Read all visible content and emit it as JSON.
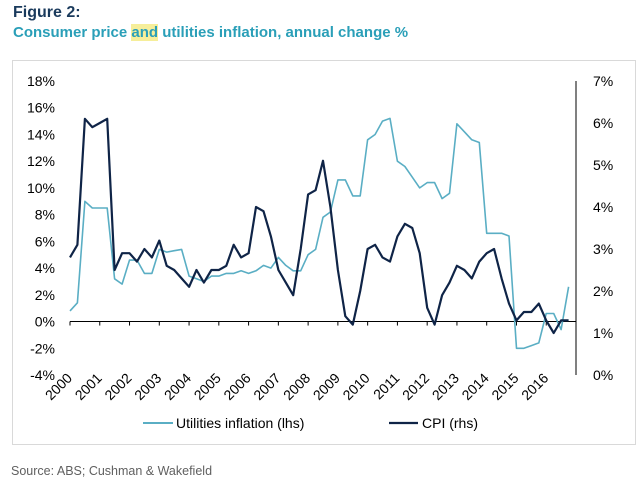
{
  "figure_label": "Figure 2:",
  "title_parts": [
    "Consumer price ",
    "and",
    " utilities inflation, annual change %"
  ],
  "source": "Source: ABS; Cushman & Wakefield",
  "colors": {
    "utilities": "#5aaec4",
    "cpi": "#0f2447",
    "title": "#2a9fb8",
    "highlight": "#f6ee9a"
  },
  "chart_data": {
    "type": "line",
    "title": "Consumer price and utilities inflation, annual change %",
    "x_tick_labels": [
      "2000",
      "2001",
      "2002",
      "2003",
      "2004",
      "2005",
      "2006",
      "2007",
      "2008",
      "2009",
      "2010",
      "2011",
      "2012",
      "2013",
      "2014",
      "2015",
      "2016"
    ],
    "y_left": {
      "ticks": [
        "18%",
        "16%",
        "14%",
        "12%",
        "10%",
        "8%",
        "6%",
        "4%",
        "2%",
        "0%",
        "-2%",
        "-4%"
      ],
      "range": [
        -4,
        18
      ]
    },
    "y_right": {
      "ticks": [
        "7%",
        "6%",
        "5%",
        "4%",
        "3%",
        "2%",
        "1%",
        "0%"
      ],
      "range": [
        0,
        7
      ]
    },
    "grid": false,
    "legend_position": "bottom",
    "series": [
      {
        "name": "Utilities inflation (lhs)",
        "axis": "left",
        "x": [
          2000.0,
          2000.25,
          2000.5,
          2000.75,
          2001.0,
          2001.25,
          2001.5,
          2001.75,
          2002.0,
          2002.25,
          2002.5,
          2002.75,
          2003.0,
          2003.25,
          2003.5,
          2003.75,
          2004.0,
          2004.25,
          2004.5,
          2004.75,
          2005.0,
          2005.25,
          2005.5,
          2005.75,
          2006.0,
          2006.25,
          2006.5,
          2006.75,
          2007.0,
          2007.25,
          2007.5,
          2007.75,
          2008.0,
          2008.25,
          2008.5,
          2008.75,
          2009.0,
          2009.25,
          2009.5,
          2009.75,
          2010.0,
          2010.25,
          2010.5,
          2010.75,
          2011.0,
          2011.25,
          2011.5,
          2011.75,
          2012.0,
          2012.25,
          2012.5,
          2012.75,
          2013.0,
          2013.25,
          2013.5,
          2013.75,
          2014.0,
          2014.25,
          2014.5,
          2014.75,
          2015.0,
          2015.25,
          2015.5,
          2015.75,
          2016.0,
          2016.25,
          2016.5,
          2016.75
        ],
        "values": [
          0.8,
          1.4,
          9.0,
          8.5,
          8.5,
          8.5,
          3.2,
          2.8,
          4.6,
          4.6,
          3.6,
          3.6,
          5.4,
          5.2,
          5.3,
          5.4,
          3.4,
          3.2,
          3.0,
          3.4,
          3.4,
          3.6,
          3.6,
          3.8,
          3.6,
          3.8,
          4.2,
          4.0,
          4.8,
          4.2,
          3.8,
          3.8,
          5.0,
          5.4,
          7.8,
          8.2,
          10.6,
          10.6,
          9.4,
          9.4,
          13.6,
          14.0,
          15.0,
          15.2,
          12.0,
          11.6,
          10.8,
          10.0,
          10.4,
          10.4,
          9.2,
          9.6,
          14.8,
          14.2,
          13.6,
          13.4,
          6.6,
          6.6,
          6.6,
          6.4,
          -2.0,
          -2.0,
          -1.8,
          -1.6,
          0.6,
          0.6,
          -0.6,
          2.6
        ]
      },
      {
        "name": "CPI (rhs)",
        "axis": "right",
        "x": [
          2000.0,
          2000.25,
          2000.5,
          2000.75,
          2001.0,
          2001.25,
          2001.5,
          2001.75,
          2002.0,
          2002.25,
          2002.5,
          2002.75,
          2003.0,
          2003.25,
          2003.5,
          2003.75,
          2004.0,
          2004.25,
          2004.5,
          2004.75,
          2005.0,
          2005.25,
          2005.5,
          2005.75,
          2006.0,
          2006.25,
          2006.5,
          2006.75,
          2007.0,
          2007.25,
          2007.5,
          2007.75,
          2008.0,
          2008.25,
          2008.5,
          2008.75,
          2009.0,
          2009.25,
          2009.5,
          2009.75,
          2010.0,
          2010.25,
          2010.5,
          2010.75,
          2011.0,
          2011.25,
          2011.5,
          2011.75,
          2012.0,
          2012.25,
          2012.5,
          2012.75,
          2013.0,
          2013.25,
          2013.5,
          2013.75,
          2014.0,
          2014.25,
          2014.5,
          2014.75,
          2015.0,
          2015.25,
          2015.5,
          2015.75,
          2016.0,
          2016.25,
          2016.5,
          2016.75
        ],
        "values": [
          2.8,
          3.1,
          6.1,
          5.9,
          6.0,
          6.1,
          2.5,
          2.9,
          2.9,
          2.7,
          3.0,
          2.8,
          3.2,
          2.6,
          2.5,
          2.3,
          2.1,
          2.5,
          2.2,
          2.5,
          2.5,
          2.6,
          3.1,
          2.8,
          2.9,
          4.0,
          3.9,
          3.3,
          2.5,
          2.2,
          1.9,
          3.0,
          4.3,
          4.4,
          5.1,
          4.0,
          2.5,
          1.4,
          1.2,
          2.0,
          3.0,
          3.1,
          2.8,
          2.7,
          3.3,
          3.6,
          3.5,
          2.9,
          1.6,
          1.2,
          1.9,
          2.2,
          2.6,
          2.5,
          2.3,
          2.7,
          2.9,
          3.0,
          2.3,
          1.7,
          1.3,
          1.5,
          1.5,
          1.7,
          1.3,
          1.0,
          1.3,
          1.3
        ]
      }
    ]
  }
}
